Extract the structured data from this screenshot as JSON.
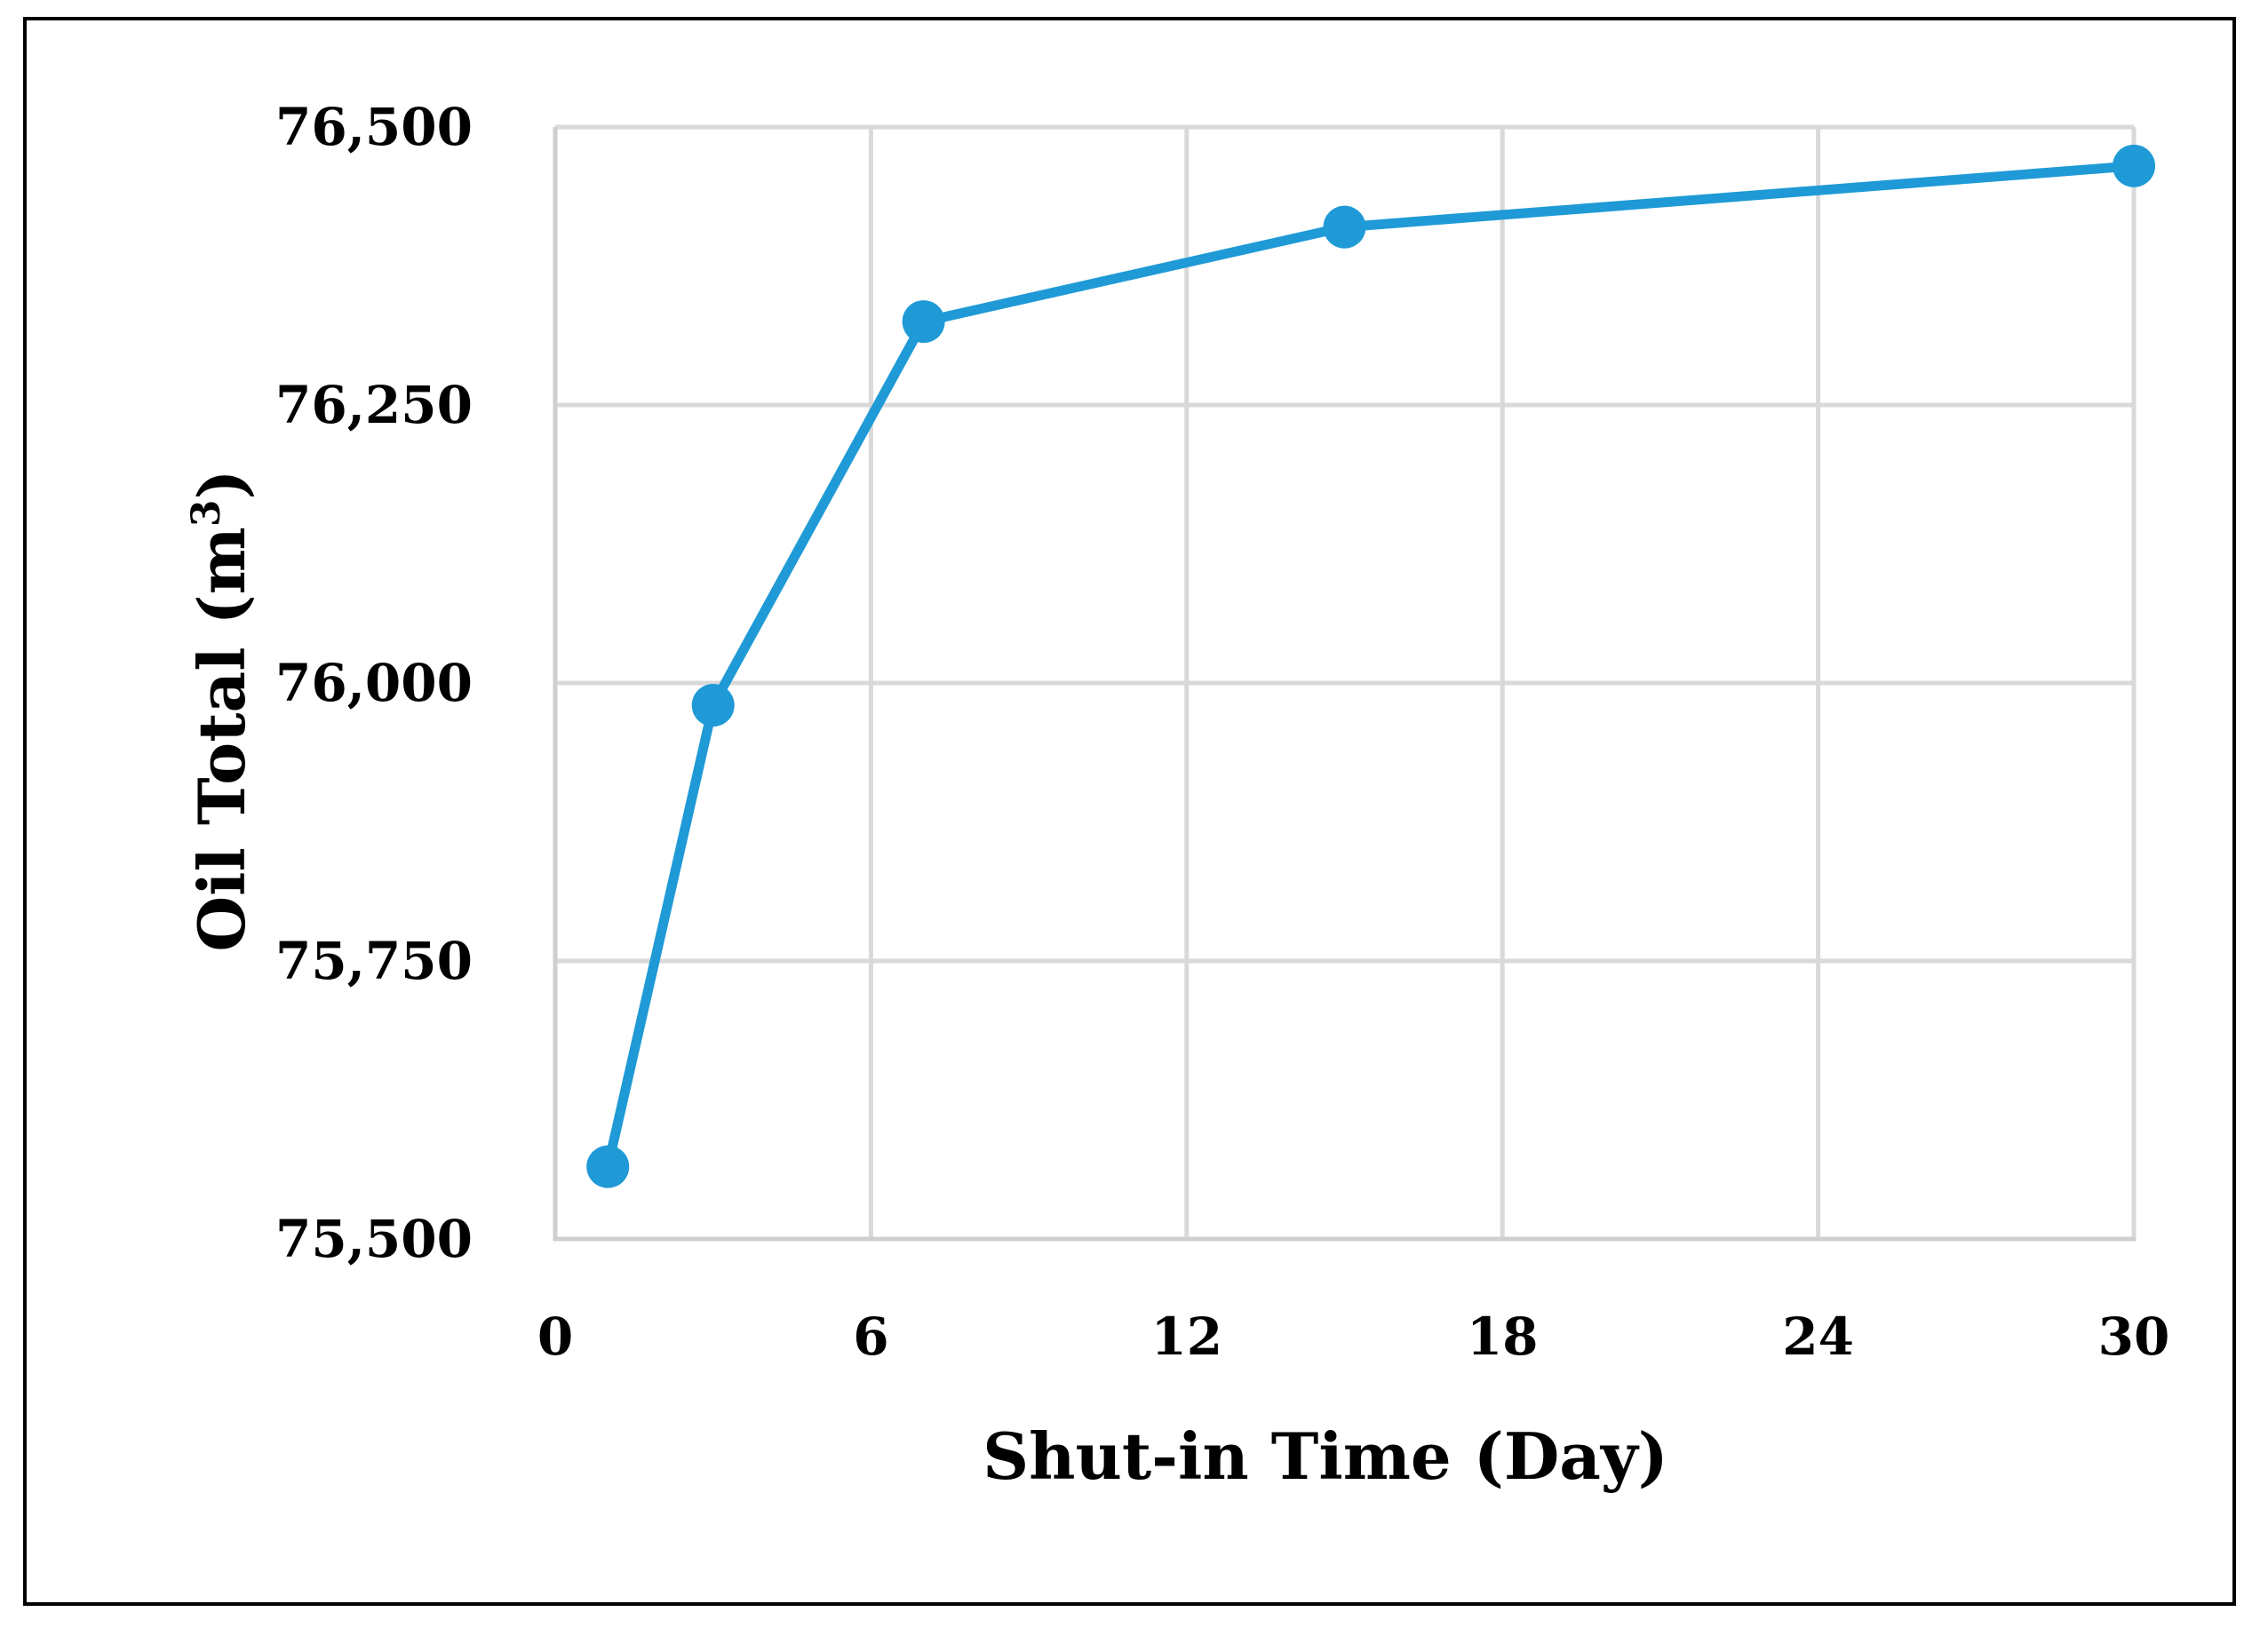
{
  "chart_data": {
    "type": "line",
    "title": "",
    "xlabel": "Shut-in Time (Day)",
    "ylabel_main": "Oil Total (m",
    "ylabel_sup": "3",
    "ylabel_end": ")",
    "xlim": [
      0,
      30
    ],
    "ylim": [
      75500,
      76500
    ],
    "xticks": [
      0,
      6,
      12,
      18,
      24,
      30
    ],
    "yticks": [
      75500,
      75750,
      76000,
      76250,
      76500
    ],
    "xtick_labels": [
      "0",
      "6",
      "12",
      "18",
      "24",
      "30"
    ],
    "ytick_labels": [
      "75,500",
      "75,750",
      "76,000",
      "76,250",
      "76,500"
    ],
    "grid": true,
    "legend": "none",
    "series": [
      {
        "color": "#1f9ad6",
        "x": [
          1,
          3,
          7,
          15,
          30
        ],
        "y": [
          75565,
          75980,
          76325,
          76410,
          76465
        ]
      }
    ]
  }
}
